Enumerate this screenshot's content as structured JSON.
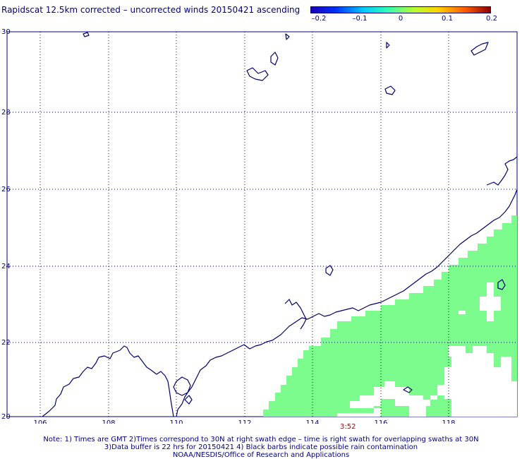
{
  "title": "Rapidscat 12.5km corrected – uncorrected winds 20150421 ascending",
  "colorbar": {
    "ticks": [
      "–0.2",
      "–0.1",
      "0",
      "0.1",
      "0.2"
    ],
    "colors": [
      "#1b00b8",
      "#0032ff",
      "#00c8ff",
      "#32ffb4",
      "#b4ff32",
      "#ffd200",
      "#ff5a00",
      "#8b0000"
    ]
  },
  "axes": {
    "lat_labels": [
      "30",
      "28",
      "26",
      "24",
      "22",
      "20"
    ],
    "lon_labels": [
      "106",
      "108",
      "110",
      "112",
      "114",
      "116",
      "118"
    ],
    "lat_range": [
      20,
      30
    ],
    "lon_range": [
      105,
      120
    ],
    "grid": "dotted"
  },
  "swath_time": "3:52",
  "swath_color": "#7cfc8c",
  "coast_color": "#00006e",
  "notes": [
    "Note: 1) Times are GMT 2)Times correspond to 30N at right swath edge – time is right swath for overlapping swaths at 30N",
    "3)Data buffer is 22 hrs for 20150421 4) Black barbs indicate possible rain contamination",
    "NOAA/NESDIS/Office of Research and Applications"
  ]
}
